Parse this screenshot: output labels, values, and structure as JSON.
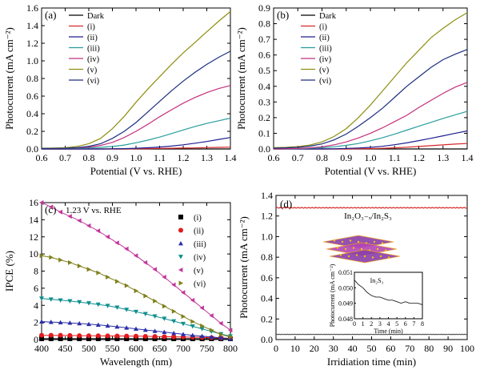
{
  "chart_data": [
    {
      "id": "a",
      "type": "line",
      "panel_label": "(a)",
      "xlabel": "Potential (V vs. RHE)",
      "ylabel": "Photocurrent (mA cm⁻²)",
      "xlim": [
        0.6,
        1.4
      ],
      "ylim": [
        0,
        1.6
      ],
      "xticks": [
        "0.6",
        "0.7",
        "0.8",
        "0.9",
        "1.0",
        "1.1",
        "1.2",
        "1.3",
        "1.4"
      ],
      "yticks": [
        "0.0",
        "0.2",
        "0.4",
        "0.6",
        "0.8",
        "1.0",
        "1.2",
        "1.4",
        "1.6"
      ],
      "legend_position": "top-left",
      "x": [
        0.6,
        0.65,
        0.7,
        0.75,
        0.8,
        0.85,
        0.9,
        0.95,
        1.0,
        1.05,
        1.1,
        1.15,
        1.2,
        1.25,
        1.3,
        1.35,
        1.4
      ],
      "series": [
        {
          "name": "Dark",
          "color": "#000000",
          "values": [
            0,
            0,
            0,
            0,
            0,
            0,
            0,
            0,
            0,
            0,
            0,
            0,
            0,
            0,
            0,
            0,
            0
          ]
        },
        {
          "name": "(i)",
          "color": "#d62728",
          "values": [
            0,
            0,
            0,
            0,
            0,
            0,
            0,
            0,
            0.002,
            0.004,
            0.006,
            0.008,
            0.01,
            0.012,
            0.015,
            0.018,
            0.02
          ]
        },
        {
          "name": "(ii)",
          "color": "#1f1f8f",
          "values": [
            0,
            0,
            0,
            0,
            0,
            0,
            0.002,
            0.004,
            0.008,
            0.014,
            0.022,
            0.033,
            0.047,
            0.065,
            0.085,
            0.108,
            0.13
          ]
        },
        {
          "name": "(iii)",
          "color": "#2a9d9d",
          "values": [
            0.005,
            0.005,
            0.006,
            0.008,
            0.012,
            0.018,
            0.028,
            0.045,
            0.07,
            0.1,
            0.135,
            0.175,
            0.215,
            0.255,
            0.29,
            0.32,
            0.35
          ]
        },
        {
          "name": "(iv)",
          "color": "#c4307c",
          "values": [
            0.005,
            0.006,
            0.008,
            0.012,
            0.022,
            0.04,
            0.075,
            0.13,
            0.2,
            0.28,
            0.365,
            0.445,
            0.52,
            0.585,
            0.64,
            0.685,
            0.72
          ]
        },
        {
          "name": "(v)",
          "color": "#8e8e10",
          "values": [
            0.008,
            0.01,
            0.014,
            0.028,
            0.06,
            0.12,
            0.23,
            0.37,
            0.53,
            0.68,
            0.82,
            0.96,
            1.09,
            1.21,
            1.33,
            1.45,
            1.56
          ]
        },
        {
          "name": "(vi)",
          "color": "#1b2f80",
          "values": [
            0.005,
            0.006,
            0.008,
            0.015,
            0.03,
            0.06,
            0.12,
            0.2,
            0.3,
            0.42,
            0.54,
            0.66,
            0.77,
            0.87,
            0.96,
            1.04,
            1.11
          ]
        }
      ]
    },
    {
      "id": "b",
      "type": "line",
      "panel_label": "(b)",
      "xlabel": "Potential (V vs. RHE)",
      "ylabel": "Photocurrent (mA cm⁻²)",
      "xlim": [
        0.6,
        1.4
      ],
      "ylim": [
        0,
        0.9
      ],
      "xticks": [
        "0.6",
        "0.7",
        "0.8",
        "0.9",
        "1.0",
        "1.1",
        "1.2",
        "1.3",
        "1.4"
      ],
      "yticks": [
        "0.0",
        "0.1",
        "0.2",
        "0.3",
        "0.4",
        "0.5",
        "0.6",
        "0.7",
        "0.8",
        "0.9"
      ],
      "legend_position": "top-left",
      "x": [
        0.6,
        0.65,
        0.7,
        0.75,
        0.8,
        0.85,
        0.9,
        0.95,
        1.0,
        1.05,
        1.1,
        1.15,
        1.2,
        1.25,
        1.3,
        1.35,
        1.4
      ],
      "series": [
        {
          "name": "Dark",
          "color": "#000000",
          "values": [
            0,
            0,
            0,
            0,
            0,
            0,
            0,
            0,
            0,
            0,
            0,
            0,
            0,
            0,
            0,
            0,
            0
          ]
        },
        {
          "name": "(i)",
          "color": "#d62728",
          "values": [
            0,
            0,
            0,
            0,
            0,
            0,
            0,
            0.001,
            0.002,
            0.004,
            0.007,
            0.011,
            0.016,
            0.021,
            0.026,
            0.031,
            0.035
          ]
        },
        {
          "name": "(ii)",
          "color": "#1f1f8f",
          "values": [
            0,
            0,
            0,
            0,
            0,
            0.001,
            0.003,
            0.006,
            0.01,
            0.017,
            0.027,
            0.039,
            0.053,
            0.068,
            0.084,
            0.1,
            0.115
          ]
        },
        {
          "name": "(iii)",
          "color": "#2a9d9d",
          "values": [
            0,
            0,
            0.002,
            0.004,
            0.008,
            0.014,
            0.023,
            0.035,
            0.052,
            0.072,
            0.095,
            0.12,
            0.145,
            0.17,
            0.195,
            0.218,
            0.24
          ]
        },
        {
          "name": "(iv)",
          "color": "#c4307c",
          "values": [
            0,
            0.001,
            0.003,
            0.007,
            0.014,
            0.026,
            0.045,
            0.07,
            0.1,
            0.135,
            0.175,
            0.215,
            0.265,
            0.31,
            0.355,
            0.395,
            0.425
          ]
        },
        {
          "name": "(v)",
          "color": "#8e8e10",
          "values": [
            0.008,
            0.01,
            0.015,
            0.025,
            0.045,
            0.08,
            0.13,
            0.2,
            0.28,
            0.37,
            0.46,
            0.55,
            0.63,
            0.71,
            0.77,
            0.825,
            0.87
          ]
        },
        {
          "name": "(vi)",
          "color": "#1b2f80",
          "values": [
            0.005,
            0.007,
            0.01,
            0.018,
            0.032,
            0.058,
            0.095,
            0.145,
            0.2,
            0.26,
            0.33,
            0.4,
            0.46,
            0.52,
            0.57,
            0.605,
            0.635
          ]
        }
      ]
    },
    {
      "id": "c",
      "type": "line",
      "panel_label": "(c)",
      "annotation": "1.23 V vs. RHE",
      "xlabel": "Wavelength (nm)",
      "ylabel": "IPCE (%)",
      "xlim": [
        400,
        800
      ],
      "ylim": [
        0,
        16
      ],
      "xticks": [
        "400",
        "450",
        "500",
        "550",
        "600",
        "650",
        "700",
        "750",
        "800"
      ],
      "yticks": [
        "0",
        "2",
        "4",
        "6",
        "8",
        "10",
        "12",
        "14",
        "16"
      ],
      "legend_position": "top-right",
      "x": [
        400,
        420,
        440,
        460,
        480,
        500,
        520,
        540,
        560,
        580,
        600,
        620,
        640,
        660,
        680,
        700,
        720,
        740,
        760,
        780,
        800
      ],
      "series": [
        {
          "name": "(i)",
          "color": "#000000",
          "marker": "square",
          "values": [
            0.1,
            0.1,
            0.1,
            0.1,
            0.1,
            0.1,
            0.1,
            0.1,
            0.1,
            0.1,
            0.1,
            0.1,
            0.1,
            0.1,
            0.1,
            0.1,
            0.1,
            0.1,
            0.1,
            0.1,
            0.1
          ]
        },
        {
          "name": "(ii)",
          "color": "#e41a1c",
          "marker": "circle",
          "values": [
            0.5,
            0.5,
            0.5,
            0.48,
            0.46,
            0.45,
            0.44,
            0.43,
            0.42,
            0.41,
            0.4,
            0.38,
            0.36,
            0.34,
            0.32,
            0.3,
            0.28,
            0.25,
            0.22,
            0.18,
            0.15
          ]
        },
        {
          "name": "(iii)",
          "color": "#2b2fa8",
          "marker": "triangle-up",
          "values": [
            2.1,
            2.05,
            2.0,
            1.95,
            1.88,
            1.8,
            1.72,
            1.62,
            1.5,
            1.38,
            1.25,
            1.12,
            1.0,
            0.88,
            0.75,
            0.62,
            0.5,
            0.4,
            0.3,
            0.2,
            0.1
          ]
        },
        {
          "name": "(iv)",
          "color": "#0f8f8f",
          "marker": "triangle-down",
          "values": [
            4.8,
            4.7,
            4.6,
            4.5,
            4.38,
            4.25,
            4.1,
            3.95,
            3.75,
            3.5,
            3.25,
            3.0,
            2.72,
            2.45,
            2.15,
            1.85,
            1.55,
            1.25,
            0.95,
            0.65,
            0.4
          ]
        },
        {
          "name": "(v)",
          "color": "#c2389b",
          "marker": "triangle-left",
          "values": [
            16.0,
            15.5,
            14.9,
            14.4,
            13.9,
            13.3,
            12.7,
            12.0,
            11.3,
            10.6,
            9.8,
            9.0,
            8.2,
            7.3,
            6.4,
            5.5,
            4.6,
            3.7,
            2.8,
            1.9,
            1.1
          ]
        },
        {
          "name": "(vi)",
          "color": "#7f7f1a",
          "marker": "triangle-right",
          "values": [
            9.8,
            9.6,
            9.3,
            9.0,
            8.6,
            8.2,
            7.8,
            7.3,
            6.8,
            6.3,
            5.7,
            5.1,
            4.5,
            3.9,
            3.3,
            2.7,
            2.1,
            1.6,
            1.1,
            0.6,
            0.3
          ]
        }
      ]
    },
    {
      "id": "d",
      "type": "line",
      "panel_label": "(d)",
      "xlabel": "Irridiation time (min)",
      "ylabel": "Photocurrent (mA cm⁻²)",
      "xlim": [
        0,
        100
      ],
      "ylim": [
        0,
        1.4
      ],
      "xticks": [
        "0",
        "10",
        "20",
        "30",
        "40",
        "50",
        "60",
        "70",
        "80",
        "90",
        "100"
      ],
      "yticks": [
        "0.0",
        "0.2",
        "0.4",
        "0.6",
        "0.8",
        "1.0",
        "1.2",
        "1.4"
      ],
      "series": [
        {
          "name": "In₂O₃₋ₓ/In₂S₃",
          "color": "#d62728",
          "x": [
            0,
            10,
            20,
            30,
            40,
            50,
            60,
            70,
            80,
            90,
            100
          ],
          "values": [
            1.28,
            1.28,
            1.28,
            1.28,
            1.28,
            1.28,
            1.28,
            1.28,
            1.28,
            1.28,
            1.28
          ]
        },
        {
          "color": "#555555",
          "x": [
            0,
            10,
            20,
            30,
            40,
            50,
            60,
            70,
            80,
            90,
            100
          ],
          "values": [
            0.05,
            0.05,
            0.05,
            0.05,
            0.05,
            0.05,
            0.05,
            0.05,
            0.05,
            0.05,
            0.05
          ]
        }
      ],
      "label_top": "In₂O₃₋ₓ/In₂S₃",
      "inset": {
        "label": "In₂S₃",
        "xlabel": "Time (min)",
        "ylabel": "Photocurrent (mA cm⁻²)",
        "xlim": [
          0,
          8
        ],
        "ylim": [
          0.048,
          0.051
        ],
        "xticks": [
          "0",
          "1",
          "2",
          "3",
          "4",
          "5",
          "6",
          "7",
          "8"
        ],
        "yticks": [
          "0.048",
          "0.049",
          "0.050",
          "0.051"
        ],
        "x": [
          0,
          0.5,
          1,
          1.5,
          2,
          2.5,
          3,
          3.5,
          4,
          4.5,
          5,
          5.5,
          6,
          6.5,
          7,
          7.5,
          8
        ],
        "values": [
          0.0505,
          0.0502,
          0.05,
          0.0497,
          0.0495,
          0.0494,
          0.0494,
          0.0493,
          0.0492,
          0.0492,
          0.0491,
          0.049,
          0.0491,
          0.049,
          0.049,
          0.049,
          0.0489
        ]
      }
    }
  ]
}
